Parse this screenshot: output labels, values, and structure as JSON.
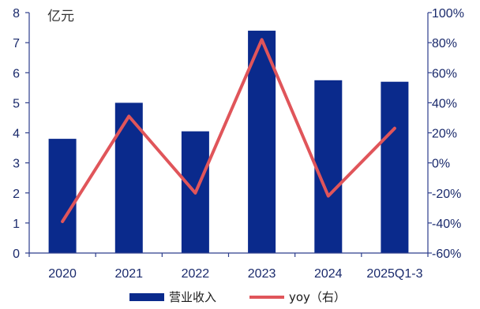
{
  "chart_data": {
    "type": "bar",
    "categories": [
      "2020",
      "2021",
      "2022",
      "2023",
      "2024",
      "2025Q1-3"
    ],
    "series": [
      {
        "name": "营业收入",
        "type": "bar",
        "axis": "left",
        "color": "#0a2a8c",
        "values": [
          3.8,
          5.0,
          4.05,
          7.4,
          5.75,
          5.7
        ]
      },
      {
        "name": "yoy（右）",
        "type": "line",
        "axis": "right",
        "color": "#e0555a",
        "values": [
          -39,
          31,
          -20,
          82,
          -22,
          23
        ]
      }
    ],
    "y_left": {
      "unit": "亿元",
      "range": [
        0,
        8
      ],
      "ticks": [
        "0",
        "1",
        "2",
        "3",
        "4",
        "5",
        "6",
        "7",
        "8"
      ]
    },
    "y_right": {
      "range": [
        -60,
        100
      ],
      "ticks": [
        "-60%",
        "-40%",
        "-20%",
        "0%",
        "20%",
        "40%",
        "60%",
        "80%",
        "100%"
      ]
    },
    "grid": false,
    "legend_position": "bottom"
  }
}
